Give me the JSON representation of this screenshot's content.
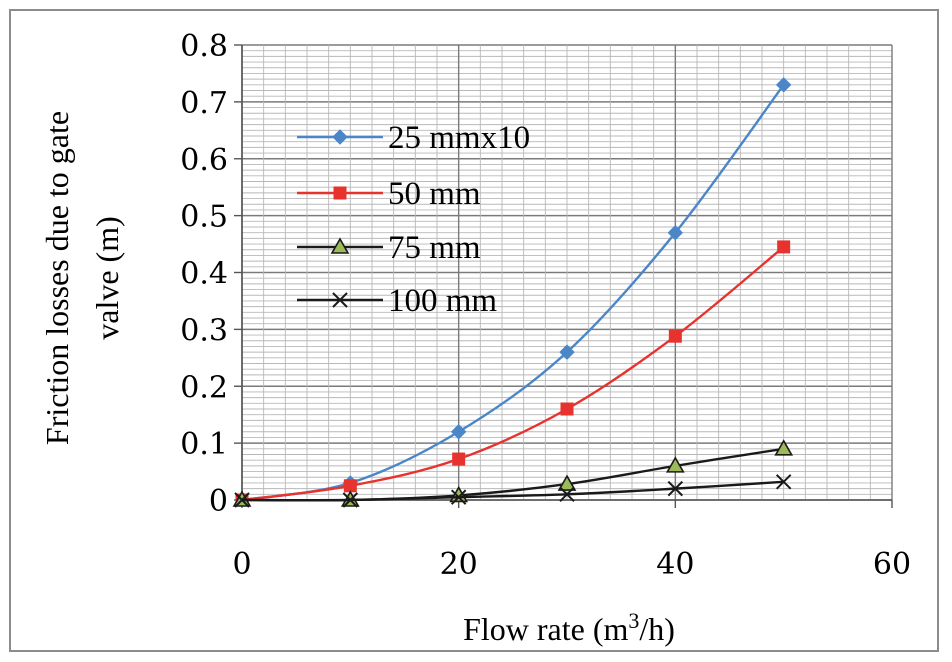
{
  "chart_data": {
    "type": "line",
    "title": "",
    "xlabel": "Flow rate (m³/h)",
    "xlabel_parts": {
      "pre": "Flow rate (m",
      "sup": "3",
      "post": "/h)"
    },
    "ylabel_line1": "Friction losses due to gate",
    "ylabel_line2": "valve (m)",
    "xlim": [
      0,
      60
    ],
    "ylim": [
      0,
      0.8
    ],
    "x_ticks": [
      "0",
      "20",
      "40",
      "60"
    ],
    "y_ticks": [
      "0",
      "0.1",
      "0.2",
      "0.3",
      "0.4",
      "0.5",
      "0.6",
      "0.7",
      "0.8"
    ],
    "grid": true,
    "legend_position": "upper-left inside",
    "x": [
      0,
      10,
      20,
      30,
      40,
      50
    ],
    "series": [
      {
        "name": "25 mmx10",
        "color": "#4a86c8",
        "marker": "diamond",
        "values": [
          0,
          0.03,
          0.12,
          0.26,
          0.47,
          0.73
        ]
      },
      {
        "name": "50 mm",
        "color": "#e8322e",
        "marker": "square",
        "values": [
          0,
          0.025,
          0.072,
          0.16,
          0.288,
          0.445
        ]
      },
      {
        "name": "75 mm",
        "color": "#1a1a1a",
        "marker": "triangle",
        "values": [
          0,
          0,
          0.008,
          0.028,
          0.06,
          0.09
        ]
      },
      {
        "name": "100 mm",
        "color": "#1a1a1a",
        "marker": "x",
        "values": [
          0,
          0,
          0.005,
          0.01,
          0.02,
          0.032
        ]
      }
    ]
  }
}
